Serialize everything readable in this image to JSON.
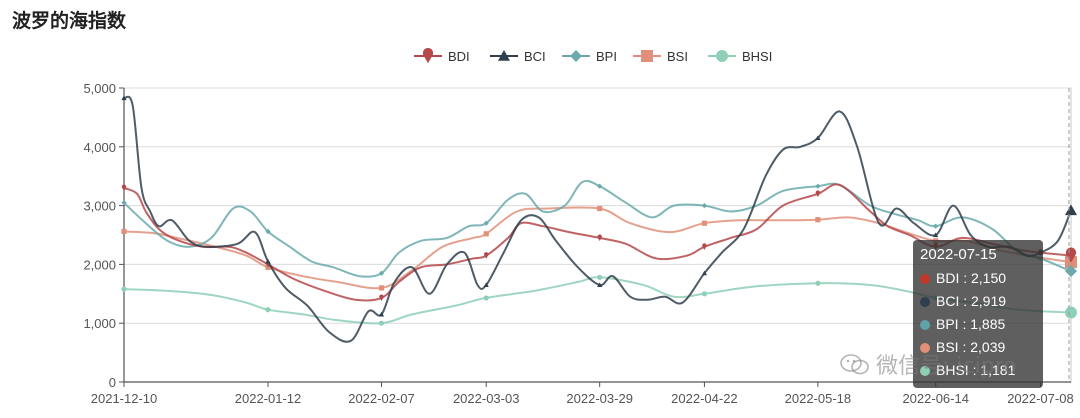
{
  "title": "波罗的海指数",
  "watermark_text": "微信号: icipro",
  "tooltip": {
    "date": "2022-07-15",
    "rows": [
      {
        "text": "BDI : 2,150",
        "color": "#c0392b"
      },
      {
        "text": "BCI : 2,919",
        "color": "#2f3f4e"
      },
      {
        "text": "BPI : 1,885",
        "color": "#5fa3a8"
      },
      {
        "text": "BSI : 2,039",
        "color": "#e2907a"
      },
      {
        "text": "BHSI : 1,181",
        "color": "#8ecfb5"
      }
    ]
  },
  "chart_data": {
    "type": "line",
    "title": "波罗的海指数",
    "xlabel": "",
    "ylabel": "",
    "ylim": [
      0,
      5000
    ],
    "y_ticks": [
      0,
      1000,
      2000,
      3000,
      4000,
      5000
    ],
    "y_tick_labels": [
      "0",
      "1,000",
      "2,000",
      "3,000",
      "4,000",
      "5,000"
    ],
    "x_tick_labels": [
      "2021-12-10",
      "2022-01-12",
      "2022-02-07",
      "2022-03-03",
      "2022-03-29",
      "2022-04-22",
      "2022-05-18",
      "2022-06-14",
      "2022-07-08"
    ],
    "x_range": [
      "2021-12-10",
      "2022-07-15"
    ],
    "grid": "horizontal",
    "legend": "top-center",
    "series": [
      {
        "name": "BDI",
        "color": "#b5484a",
        "symbol": "pin",
        "points": [
          [
            "2021-12-10",
            3300
          ],
          [
            "2021-12-13",
            3200
          ],
          [
            "2021-12-15",
            2900
          ],
          [
            "2021-12-18",
            2600
          ],
          [
            "2021-12-22",
            2420
          ],
          [
            "2021-12-28",
            2300
          ],
          [
            "2022-01-03",
            2300
          ],
          [
            "2022-01-07",
            2200
          ],
          [
            "2022-01-12",
            2000
          ],
          [
            "2022-01-18",
            1750
          ],
          [
            "2022-01-25",
            1550
          ],
          [
            "2022-02-01",
            1400
          ],
          [
            "2022-02-07",
            1430
          ],
          [
            "2022-02-11",
            1700
          ],
          [
            "2022-02-16",
            1950
          ],
          [
            "2022-02-22",
            2000
          ],
          [
            "2022-02-28",
            2100
          ],
          [
            "2022-03-03",
            2150
          ],
          [
            "2022-03-08",
            2450
          ],
          [
            "2022-03-11",
            2700
          ],
          [
            "2022-03-16",
            2650
          ],
          [
            "2022-03-22",
            2550
          ],
          [
            "2022-03-29",
            2450
          ],
          [
            "2022-04-04",
            2350
          ],
          [
            "2022-04-11",
            2100
          ],
          [
            "2022-04-18",
            2150
          ],
          [
            "2022-04-22",
            2300
          ],
          [
            "2022-04-28",
            2450
          ],
          [
            "2022-05-04",
            2600
          ],
          [
            "2022-05-10",
            3000
          ],
          [
            "2022-05-18",
            3200
          ],
          [
            "2022-05-23",
            3350
          ],
          [
            "2022-05-30",
            2900
          ],
          [
            "2022-06-03",
            2650
          ],
          [
            "2022-06-08",
            2500
          ],
          [
            "2022-06-14",
            2300
          ],
          [
            "2022-06-20",
            2450
          ],
          [
            "2022-06-27",
            2350
          ],
          [
            "2022-07-03",
            2250
          ],
          [
            "2022-07-08",
            2200
          ],
          [
            "2022-07-15",
            2150
          ]
        ]
      },
      {
        "name": "BCI",
        "color": "#2f3f4e",
        "symbol": "triangle",
        "points": [
          [
            "2021-12-10",
            4830
          ],
          [
            "2021-12-12",
            4700
          ],
          [
            "2021-12-14",
            3300
          ],
          [
            "2021-12-16",
            2900
          ],
          [
            "2021-12-18",
            2650
          ],
          [
            "2021-12-21",
            2750
          ],
          [
            "2021-12-25",
            2400
          ],
          [
            "2021-12-29",
            2300
          ],
          [
            "2022-01-05",
            2350
          ],
          [
            "2022-01-09",
            2550
          ],
          [
            "2022-01-12",
            2050
          ],
          [
            "2022-01-16",
            1600
          ],
          [
            "2022-01-21",
            1300
          ],
          [
            "2022-01-26",
            850
          ],
          [
            "2022-01-31",
            700
          ],
          [
            "2022-02-04",
            1200
          ],
          [
            "2022-02-07",
            1150
          ],
          [
            "2022-02-10",
            1700
          ],
          [
            "2022-02-14",
            1950
          ],
          [
            "2022-02-18",
            1500
          ],
          [
            "2022-02-22",
            2000
          ],
          [
            "2022-02-26",
            2200
          ],
          [
            "2022-03-01",
            1650
          ],
          [
            "2022-03-03",
            1650
          ],
          [
            "2022-03-07",
            2200
          ],
          [
            "2022-03-11",
            2750
          ],
          [
            "2022-03-15",
            2800
          ],
          [
            "2022-03-19",
            2400
          ],
          [
            "2022-03-24",
            1950
          ],
          [
            "2022-03-29",
            1650
          ],
          [
            "2022-04-01",
            1800
          ],
          [
            "2022-04-05",
            1450
          ],
          [
            "2022-04-09",
            1400
          ],
          [
            "2022-04-13",
            1450
          ],
          [
            "2022-04-17",
            1350
          ],
          [
            "2022-04-22",
            1850
          ],
          [
            "2022-04-26",
            2200
          ],
          [
            "2022-05-01",
            2600
          ],
          [
            "2022-05-06",
            3500
          ],
          [
            "2022-05-10",
            3950
          ],
          [
            "2022-05-14",
            4000
          ],
          [
            "2022-05-18",
            4150
          ],
          [
            "2022-05-23",
            4600
          ],
          [
            "2022-05-27",
            4000
          ],
          [
            "2022-06-01",
            2700
          ],
          [
            "2022-06-05",
            2950
          ],
          [
            "2022-06-09",
            2700
          ],
          [
            "2022-06-14",
            2500
          ],
          [
            "2022-06-18",
            3000
          ],
          [
            "2022-06-22",
            2500
          ],
          [
            "2022-06-26",
            2300
          ],
          [
            "2022-07-01",
            2300
          ],
          [
            "2022-07-05",
            2150
          ],
          [
            "2022-07-08",
            2200
          ],
          [
            "2022-07-12",
            2400
          ],
          [
            "2022-07-15",
            2919
          ]
        ]
      },
      {
        "name": "BPI",
        "color": "#6aa9ac",
        "symbol": "diamond",
        "points": [
          [
            "2021-12-10",
            3050
          ],
          [
            "2021-12-15",
            2700
          ],
          [
            "2021-12-20",
            2400
          ],
          [
            "2021-12-25",
            2300
          ],
          [
            "2021-12-30",
            2450
          ],
          [
            "2022-01-04",
            2950
          ],
          [
            "2022-01-08",
            2900
          ],
          [
            "2022-01-12",
            2560
          ],
          [
            "2022-01-17",
            2300
          ],
          [
            "2022-01-22",
            2050
          ],
          [
            "2022-01-27",
            1950
          ],
          [
            "2022-02-02",
            1800
          ],
          [
            "2022-02-07",
            1850
          ],
          [
            "2022-02-11",
            2200
          ],
          [
            "2022-02-16",
            2400
          ],
          [
            "2022-02-22",
            2450
          ],
          [
            "2022-02-27",
            2650
          ],
          [
            "2022-03-03",
            2700
          ],
          [
            "2022-03-08",
            3100
          ],
          [
            "2022-03-12",
            3200
          ],
          [
            "2022-03-16",
            2900
          ],
          [
            "2022-03-21",
            3000
          ],
          [
            "2022-03-25",
            3400
          ],
          [
            "2022-03-29",
            3330
          ],
          [
            "2022-04-04",
            3050
          ],
          [
            "2022-04-10",
            2800
          ],
          [
            "2022-04-15",
            3000
          ],
          [
            "2022-04-22",
            3000
          ],
          [
            "2022-04-28",
            2900
          ],
          [
            "2022-05-04",
            3000
          ],
          [
            "2022-05-10",
            3250
          ],
          [
            "2022-05-18",
            3330
          ],
          [
            "2022-05-23",
            3350
          ],
          [
            "2022-05-30",
            3000
          ],
          [
            "2022-06-05",
            2850
          ],
          [
            "2022-06-10",
            2750
          ],
          [
            "2022-06-14",
            2650
          ],
          [
            "2022-06-20",
            2800
          ],
          [
            "2022-06-27",
            2600
          ],
          [
            "2022-07-03",
            2200
          ],
          [
            "2022-07-08",
            2100
          ],
          [
            "2022-07-15",
            1885
          ]
        ]
      },
      {
        "name": "BSI",
        "color": "#e0907a",
        "symbol": "square",
        "points": [
          [
            "2021-12-10",
            2560
          ],
          [
            "2021-12-17",
            2530
          ],
          [
            "2021-12-24",
            2420
          ],
          [
            "2021-12-31",
            2300
          ],
          [
            "2022-01-07",
            2150
          ],
          [
            "2022-01-12",
            1950
          ],
          [
            "2022-01-20",
            1800
          ],
          [
            "2022-01-28",
            1700
          ],
          [
            "2022-02-07",
            1600
          ],
          [
            "2022-02-14",
            1900
          ],
          [
            "2022-02-21",
            2300
          ],
          [
            "2022-02-28",
            2450
          ],
          [
            "2022-03-03",
            2520
          ],
          [
            "2022-03-10",
            2900
          ],
          [
            "2022-03-17",
            2950
          ],
          [
            "2022-03-29",
            2950
          ],
          [
            "2022-04-05",
            2700
          ],
          [
            "2022-04-14",
            2550
          ],
          [
            "2022-04-22",
            2700
          ],
          [
            "2022-04-30",
            2750
          ],
          [
            "2022-05-08",
            2750
          ],
          [
            "2022-05-18",
            2760
          ],
          [
            "2022-05-25",
            2800
          ],
          [
            "2022-06-01",
            2700
          ],
          [
            "2022-06-07",
            2550
          ],
          [
            "2022-06-14",
            2400
          ],
          [
            "2022-06-21",
            2400
          ],
          [
            "2022-06-28",
            2250
          ],
          [
            "2022-07-05",
            2150
          ],
          [
            "2022-07-15",
            2039
          ]
        ]
      },
      {
        "name": "BHSI",
        "color": "#8ecfb5",
        "symbol": "circle",
        "points": [
          [
            "2021-12-10",
            1580
          ],
          [
            "2021-12-20",
            1550
          ],
          [
            "2021-12-30",
            1480
          ],
          [
            "2022-01-07",
            1350
          ],
          [
            "2022-01-12",
            1230
          ],
          [
            "2022-01-20",
            1150
          ],
          [
            "2022-01-28",
            1050
          ],
          [
            "2022-02-07",
            1000
          ],
          [
            "2022-02-14",
            1150
          ],
          [
            "2022-02-24",
            1300
          ],
          [
            "2022-03-03",
            1430
          ],
          [
            "2022-03-14",
            1550
          ],
          [
            "2022-03-24",
            1700
          ],
          [
            "2022-03-29",
            1780
          ],
          [
            "2022-04-08",
            1650
          ],
          [
            "2022-04-15",
            1450
          ],
          [
            "2022-04-22",
            1500
          ],
          [
            "2022-05-03",
            1620
          ],
          [
            "2022-05-18",
            1680
          ],
          [
            "2022-05-30",
            1650
          ],
          [
            "2022-06-07",
            1550
          ],
          [
            "2022-06-14",
            1430
          ],
          [
            "2022-06-24",
            1330
          ],
          [
            "2022-07-03",
            1230
          ],
          [
            "2022-07-15",
            1181
          ]
        ]
      }
    ]
  }
}
